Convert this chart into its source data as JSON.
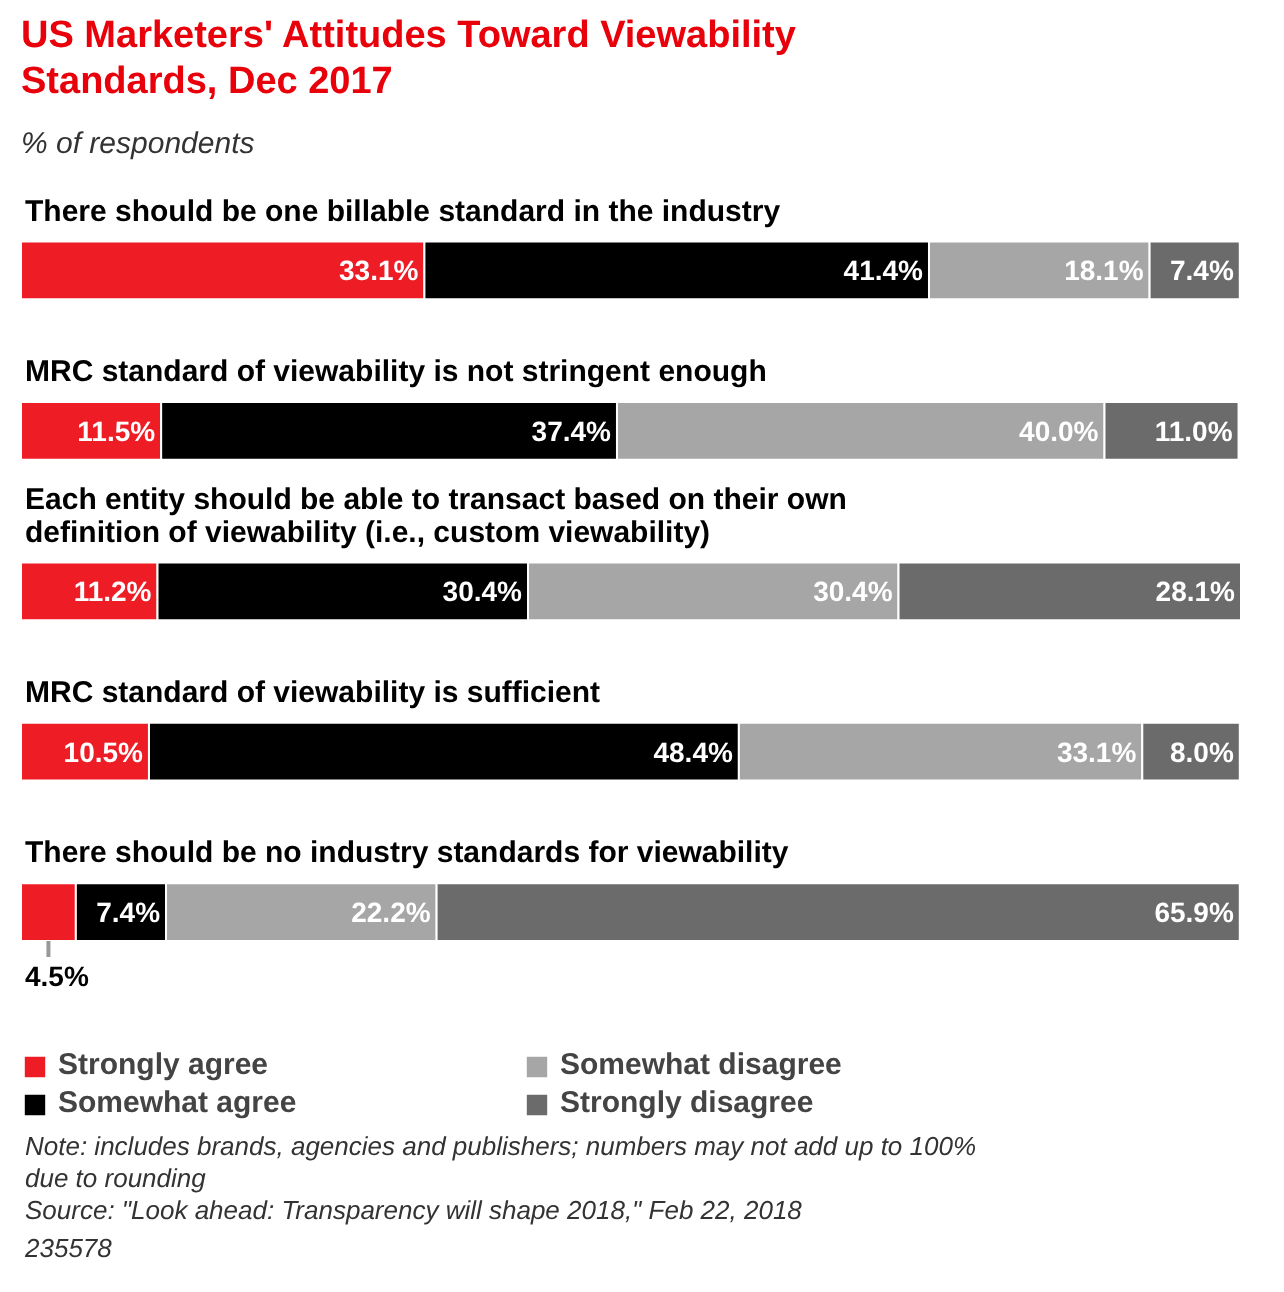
{
  "chart_data": {
    "type": "bar",
    "orientation": "horizontal",
    "stacked": true,
    "title": "US Marketers' Attitudes Toward Viewability Standards, Dec 2017",
    "subtitle": "% of respondents",
    "categories": [
      "There should be one billable standard in the industry",
      "MRC standard of viewability is not stringent enough",
      "Each entity should be able to transact based on their own definition of viewability (i.e., custom viewability)",
      "MRC standard of viewability is sufficient",
      "There should be no industry standards for viewability"
    ],
    "series": [
      {
        "name": "Strongly agree",
        "color": "#ee1c25",
        "values": [
          33.1,
          11.5,
          11.2,
          10.5,
          4.5
        ],
        "value_labels": [
          "33.1%",
          "11.5%",
          "11.2%",
          "10.5%",
          "4.5%"
        ]
      },
      {
        "name": "Somewhat agree",
        "color": "#000000",
        "values": [
          41.4,
          37.4,
          30.4,
          48.4,
          7.4
        ],
        "value_labels": [
          "41.4%",
          "37.4%",
          "30.4%",
          "48.4%",
          "7.4%"
        ]
      },
      {
        "name": "Somewhat disagree",
        "color": "#a6a6a6",
        "values": [
          18.1,
          40.0,
          30.4,
          33.1,
          22.2
        ],
        "value_labels": [
          "18.1%",
          "40.0%",
          "30.4%",
          "33.1%",
          "22.2%"
        ]
      },
      {
        "name": "Strongly disagree",
        "color": "#6b6b6b",
        "values": [
          7.4,
          11.0,
          28.1,
          8.0,
          65.9
        ],
        "value_labels": [
          "7.4%",
          "11.0%",
          "28.1%",
          "8.0%",
          "65.9%"
        ]
      }
    ],
    "legend": "bottom",
    "grid": false,
    "tick_labels": false,
    "annotations": [
      "Note: includes brands, agencies and publishers; numbers may not add up to 100% due to rounding",
      "Source: \"Look ahead: Transparency will shape 2018,\" Feb 22, 2018",
      "235578"
    ]
  }
}
